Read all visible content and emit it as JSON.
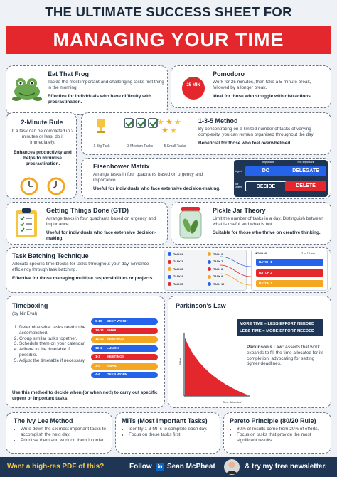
{
  "header": {
    "title_line1": "THE ULTIMATE SUCCESS SHEET FOR",
    "title_line2": "MANAGING YOUR TIME"
  },
  "colors": {
    "red": "#e4262d",
    "navy": "#1f3554",
    "blue": "#2563eb",
    "yellow": "#f5c542"
  },
  "eat_that_frog": {
    "title": "Eat That Frog",
    "desc": "Tackle the most important and challenging tasks first thing in the morning.",
    "for": "Effective for individuals who have difficulty with procrastination.",
    "icon": "frog-icon"
  },
  "pomodoro": {
    "title": "Pomodoro",
    "desc": "Work for 25 minutes, then take a 5-minute break, followed by a longer break.",
    "for": "Ideal for those who struggle with distractions.",
    "tomato_label": "25 MIN"
  },
  "two_minute": {
    "title": "2-Minute Rule",
    "desc": "If a task can be completed in 2 minutes or less, do it immediately.",
    "for": "Enhances productivity and helps to minimise procrastination."
  },
  "one_three_five": {
    "title": "1-3-5 Method",
    "desc": "By concentrating on a limited number of tasks of varying complexity, you can remain organised throughout the day.",
    "for": "Beneficial for those who feel overwhelmed.",
    "labels": [
      "1 Big Task",
      "3 Medium Tasks",
      "5 Small Tasks"
    ]
  },
  "eisenhower": {
    "title": "Eisenhower Matrix",
    "desc": "Arrange tasks in four quadrants based on urgency and importance.",
    "for": "Useful for individuals who face extensive decision-making.",
    "col_headers": [
      "Important",
      "Not Important"
    ],
    "row_headers": [
      "Urgent",
      "Not Urgent"
    ],
    "cells": [
      "DO",
      "DELEGATE",
      "DECIDE",
      "DELETE"
    ]
  },
  "gtd": {
    "title": "Getting Things Done (GTD)",
    "desc": "Arrange tasks in four quadrants based on urgency and importance.",
    "for": "Useful for individuals who face extensive decision-making."
  },
  "pickle_jar": {
    "title": "Pickle Jar Theory",
    "desc": "Limit the number of tasks in a day. Distinguish between what is useful and what is not.",
    "for": "Suitable for those who thrive on creative thinking."
  },
  "batching": {
    "title": "Task Batching Technique",
    "desc": "Allocate specific time blocks for tasks throughout your day. Enhance efficiency through task batching.",
    "for": "Effective for those managing multiple responsibilities or projects.",
    "tasks": [
      "TASK 1",
      "TASK 2",
      "TASK 3",
      "TASK 4",
      "TASK 5",
      "TASK 6",
      "TASK 7",
      "TASK 8",
      "TASK 9",
      "TASK 10"
    ],
    "day": "MONDAY",
    "time_col": "7 to 10 am",
    "batches": [
      "BATCH 1",
      "BATCH 2",
      "BATCH 3"
    ]
  },
  "timeboxing": {
    "title": "Timeboxing",
    "author": "(by Nir Eyal)",
    "steps": [
      "Determine what tasks need to be accomplished.",
      "Group similar tasks together.",
      "Schedule them on your calendar.",
      "Adhere to the timetable if possible.",
      "Adjust the timetable if necessary."
    ],
    "note": "Use this method to decide when (or when not!) to carry out specific urgent or important tasks.",
    "schedule": [
      {
        "time": "9-10",
        "label": "DEEP WORK"
      },
      {
        "time": "10-11",
        "label": "EMAIL"
      },
      {
        "time": "11-12",
        "label": "MEETINGS"
      },
      {
        "time": "12-1",
        "label": "LUNCH"
      },
      {
        "time": "1-3",
        "label": "MEETINGS"
      },
      {
        "time": "3-4",
        "label": "EMAIL"
      },
      {
        "time": "4-6",
        "label": "DEEP WORK"
      }
    ]
  },
  "parkinson": {
    "title": "Parkinson's Law",
    "line1": "MORE TIME = LESS EFFORT NEEDED",
    "line2": "LESS TIME = MORE EFFORT NEEDED",
    "desc_bold": "Parkinson's Law:",
    "desc": "Asserts that work expands to fill the time allocated for its completion, advocating for setting tighter deadlines.",
    "ylabel": "Effort",
    "xlabel": "Time Allocated"
  },
  "ivy_lee": {
    "title": "The Ivy Lee Method",
    "bullets": [
      "Write down the six most important tasks to accomplish the next day.",
      "Prioritise them and work on them in order."
    ]
  },
  "mits": {
    "title": "MITs (Most Important Tasks)",
    "bullets": [
      "Identify 1-3 MITs to complete each day.",
      "Focus on these tasks first."
    ]
  },
  "pareto": {
    "title": "Pareto Principle (80/20 Rule)",
    "bullets": [
      "80% of results come from 20% of efforts.",
      "Focus on tasks that provide the most significant results."
    ]
  },
  "footer": {
    "part1": "Want a high-res PDF of this?",
    "part2": "Follow",
    "brand": "in",
    "name": "Sean McPheat",
    "part3": "& try my free newsletter."
  }
}
